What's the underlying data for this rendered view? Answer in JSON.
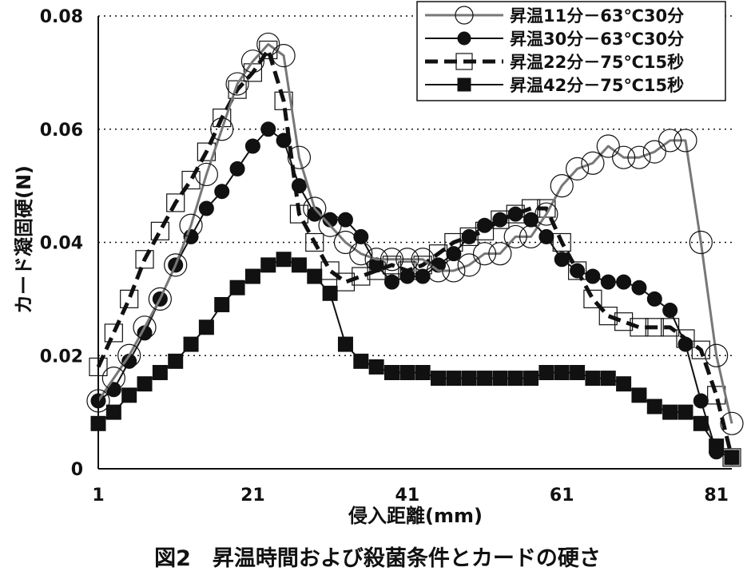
{
  "caption": "図2　昇温時間および殺菌条件とカードの硬さ",
  "chart_data": {
    "type": "line",
    "title": "",
    "xlabel": "侵入距離(mm)",
    "ylabel": "カード凝固硬(N)",
    "x_ticks": [
      "1",
      "21",
      "41",
      "61",
      "81"
    ],
    "y_ticks": [
      "0",
      "0.02",
      "0.04",
      "0.06",
      "0.08"
    ],
    "xlim": [
      1,
      83
    ],
    "ylim": [
      0,
      0.08
    ],
    "grid": "horizontal-dotted",
    "legend_position": "top-right",
    "series": [
      {
        "name": "昇温11分－63℃30分",
        "marker": "open-circle",
        "line": "gray-solid",
        "color": "#777777",
        "x": [
          1,
          3,
          5,
          7,
          9,
          11,
          13,
          15,
          17,
          19,
          21,
          23,
          25,
          27,
          29,
          31,
          33,
          35,
          37,
          39,
          41,
          43,
          45,
          47,
          49,
          51,
          53,
          55,
          57,
          59,
          61,
          63,
          65,
          67,
          69,
          71,
          73,
          75,
          77,
          79,
          81,
          83
        ],
        "y": [
          0.012,
          0.016,
          0.02,
          0.025,
          0.03,
          0.036,
          0.043,
          0.052,
          0.06,
          0.068,
          0.072,
          0.075,
          0.073,
          0.055,
          0.046,
          0.043,
          0.04,
          0.038,
          0.037,
          0.037,
          0.037,
          0.037,
          0.035,
          0.035,
          0.036,
          0.038,
          0.038,
          0.041,
          0.041,
          0.045,
          0.05,
          0.053,
          0.054,
          0.057,
          0.055,
          0.055,
          0.056,
          0.058,
          0.058,
          0.04,
          0.02,
          0.008
        ]
      },
      {
        "name": "昇温30分－63℃30分",
        "marker": "filled-circle",
        "line": "black-solid",
        "color": "#111111",
        "x": [
          1,
          3,
          5,
          7,
          9,
          11,
          13,
          15,
          17,
          19,
          21,
          23,
          25,
          27,
          29,
          31,
          33,
          35,
          37,
          39,
          41,
          43,
          45,
          47,
          49,
          51,
          53,
          55,
          57,
          59,
          61,
          63,
          65,
          67,
          69,
          71,
          73,
          75,
          77,
          79,
          81,
          83
        ],
        "y": [
          0.012,
          0.014,
          0.019,
          0.024,
          0.03,
          0.036,
          0.041,
          0.046,
          0.049,
          0.053,
          0.057,
          0.06,
          0.058,
          0.05,
          0.045,
          0.044,
          0.044,
          0.041,
          0.036,
          0.033,
          0.034,
          0.034,
          0.036,
          0.038,
          0.041,
          0.043,
          0.044,
          0.045,
          0.044,
          0.041,
          0.037,
          0.035,
          0.034,
          0.033,
          0.033,
          0.032,
          0.03,
          0.028,
          0.022,
          0.012,
          0.003,
          0.002
        ]
      },
      {
        "name": "昇温22分－75℃15秒",
        "marker": "open-square",
        "line": "black-dashed",
        "color": "#111111",
        "x": [
          1,
          3,
          5,
          7,
          9,
          11,
          13,
          15,
          17,
          19,
          21,
          23,
          25,
          27,
          29,
          31,
          33,
          35,
          37,
          39,
          41,
          43,
          45,
          47,
          49,
          51,
          53,
          55,
          57,
          59,
          61,
          63,
          65,
          67,
          69,
          71,
          73,
          75,
          77,
          79,
          81,
          83
        ],
        "y": [
          0.018,
          0.024,
          0.03,
          0.037,
          0.042,
          0.047,
          0.051,
          0.056,
          0.062,
          0.067,
          0.07,
          0.074,
          0.065,
          0.045,
          0.04,
          0.035,
          0.033,
          0.034,
          0.035,
          0.036,
          0.035,
          0.036,
          0.038,
          0.04,
          0.041,
          0.042,
          0.044,
          0.045,
          0.046,
          0.046,
          0.04,
          0.035,
          0.03,
          0.027,
          0.026,
          0.025,
          0.025,
          0.025,
          0.023,
          0.021,
          0.013,
          0.002
        ]
      },
      {
        "name": "昇温42分－75℃15秒",
        "marker": "filled-square",
        "line": "black-solid",
        "color": "#111111",
        "x": [
          1,
          3,
          5,
          7,
          9,
          11,
          13,
          15,
          17,
          19,
          21,
          23,
          25,
          27,
          29,
          31,
          33,
          35,
          37,
          39,
          41,
          43,
          45,
          47,
          49,
          51,
          53,
          55,
          57,
          59,
          61,
          63,
          65,
          67,
          69,
          71,
          73,
          75,
          77,
          79,
          81,
          83
        ],
        "y": [
          0.008,
          0.01,
          0.013,
          0.015,
          0.017,
          0.019,
          0.022,
          0.025,
          0.029,
          0.032,
          0.034,
          0.036,
          0.037,
          0.036,
          0.034,
          0.031,
          0.022,
          0.019,
          0.018,
          0.017,
          0.017,
          0.017,
          0.016,
          0.016,
          0.016,
          0.016,
          0.016,
          0.016,
          0.016,
          0.017,
          0.017,
          0.017,
          0.016,
          0.016,
          0.015,
          0.013,
          0.011,
          0.01,
          0.01,
          0.008,
          0.004,
          0.002
        ]
      }
    ]
  }
}
